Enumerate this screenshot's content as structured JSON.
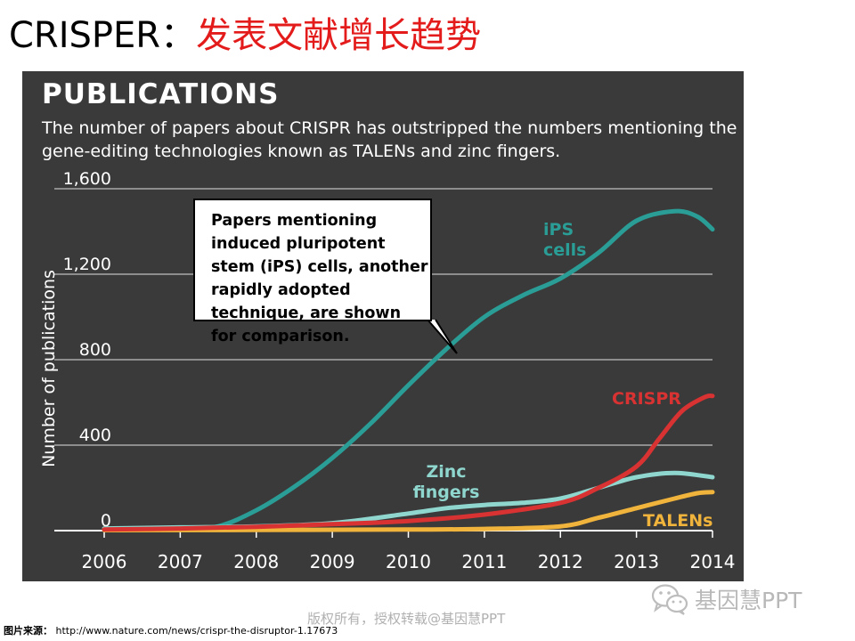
{
  "slide": {
    "title_prefix": "CRISPER：",
    "title_main": "发表文献增长趋势",
    "footer_label": "图片来源：",
    "footer_url": "http://www.nature.com/news/crispr-the-disruptor-1.17673",
    "copyright": "版权所有，授权转载@基因慧PPT",
    "watermark": "基因慧PPT",
    "watermark_icon": "wechat-icon"
  },
  "chart_data": {
    "type": "line",
    "title": "PUBLICATIONS",
    "subtitle": "The number of papers about CRISPR has outstripped the numbers mentioning the gene-editing technologies known as TALENs and zinc fingers.",
    "xlabel": "",
    "ylabel": "Number of publications",
    "xlim": [
      2006,
      2014
    ],
    "ylim": [
      0,
      1600
    ],
    "x_ticks": [
      "2006",
      "2007",
      "2008",
      "2009",
      "2010",
      "2011",
      "2012",
      "2013",
      "2014"
    ],
    "y_ticks": [
      "0",
      "400",
      "800",
      "1,200",
      "1,600"
    ],
    "grid": true,
    "annotation": "Papers mentioning induced pluripotent stem (iPS) cells, another rapidly adopted technique, are shown for comparison.",
    "series": [
      {
        "name": "iPS cells",
        "color": "#2a9d96",
        "label_lines": [
          "iPS",
          "cells"
        ],
        "points": [
          [
            2006,
            2
          ],
          [
            2007,
            8
          ],
          [
            2007.5,
            20
          ],
          [
            2008,
            95
          ],
          [
            2008.5,
            205
          ],
          [
            2009,
            340
          ],
          [
            2009.5,
            500
          ],
          [
            2010,
            680
          ],
          [
            2010.5,
            850
          ],
          [
            2011,
            1000
          ],
          [
            2011.5,
            1100
          ],
          [
            2012,
            1180
          ],
          [
            2012.5,
            1300
          ],
          [
            2013,
            1450
          ],
          [
            2013.5,
            1495
          ],
          [
            2013.8,
            1470
          ],
          [
            2014,
            1410
          ]
        ]
      },
      {
        "name": "CRISPR",
        "color": "#d83232",
        "label_lines": [
          "CRISPR"
        ],
        "points": [
          [
            2006,
            5
          ],
          [
            2007,
            10
          ],
          [
            2008,
            18
          ],
          [
            2009,
            30
          ],
          [
            2010,
            45
          ],
          [
            2011,
            75
          ],
          [
            2012,
            130
          ],
          [
            2012.5,
            200
          ],
          [
            2013,
            300
          ],
          [
            2013.3,
            430
          ],
          [
            2013.6,
            560
          ],
          [
            2013.9,
            625
          ],
          [
            2014,
            630
          ]
        ]
      },
      {
        "name": "Zinc fingers",
        "color": "#8fd6cf",
        "label_lines": [
          "Zinc",
          "fingers"
        ],
        "points": [
          [
            2006,
            10
          ],
          [
            2007,
            15
          ],
          [
            2008,
            20
          ],
          [
            2009,
            35
          ],
          [
            2010,
            80
          ],
          [
            2010.5,
            105
          ],
          [
            2011,
            120
          ],
          [
            2011.5,
            130
          ],
          [
            2012,
            150
          ],
          [
            2012.5,
            200
          ],
          [
            2013,
            250
          ],
          [
            2013.5,
            270
          ],
          [
            2014,
            250
          ]
        ]
      },
      {
        "name": "TALENs",
        "color": "#f0b33b",
        "label_lines": [
          "TALENs"
        ],
        "points": [
          [
            2006,
            2
          ],
          [
            2008,
            3
          ],
          [
            2010,
            5
          ],
          [
            2011,
            8
          ],
          [
            2012,
            20
          ],
          [
            2012.5,
            60
          ],
          [
            2013,
            105
          ],
          [
            2013.5,
            150
          ],
          [
            2013.8,
            175
          ],
          [
            2014,
            180
          ]
        ]
      }
    ]
  }
}
